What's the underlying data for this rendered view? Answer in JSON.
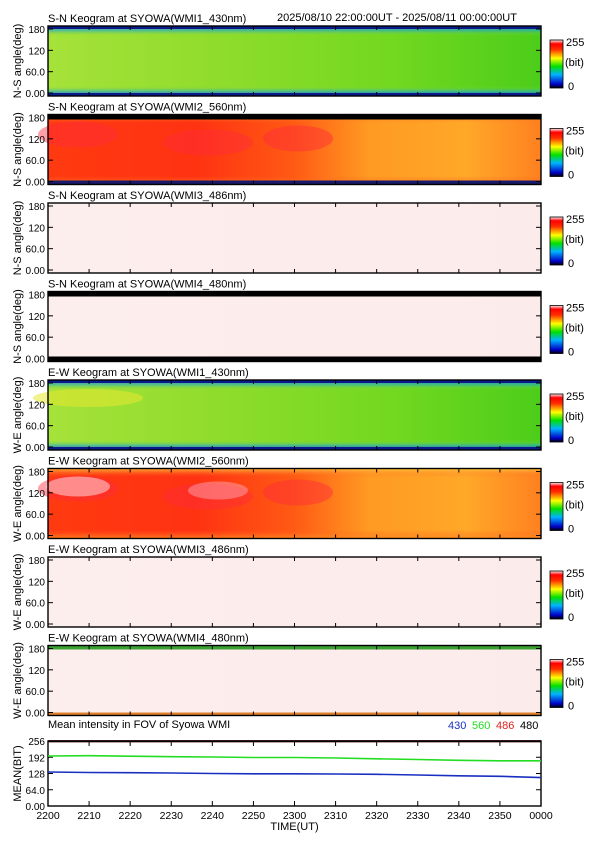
{
  "header": {
    "time_range": "2025/08/10 22:00:00UT - 2025/08/11 00:00:00UT"
  },
  "colorbar": {
    "max": "255",
    "unit": "(bit)",
    "min": "0"
  },
  "chart_data": [
    {
      "type": "heatmap",
      "title": "S-N Keogram at SYOWA(WMI1_430nm)",
      "ylabel": "N-S angle(deg)",
      "yticks": [
        "0.00",
        "60.0",
        "120",
        "180"
      ],
      "ylim": [
        0,
        180
      ],
      "color_level": 0.48,
      "tint": "green"
    },
    {
      "type": "heatmap",
      "title": "S-N Keogram at SYOWA(WMI2_560nm)",
      "ylabel": "N-S angle(deg)",
      "yticks": [
        "0.00",
        "60.0",
        "120",
        "180"
      ],
      "ylim": [
        0,
        180
      ],
      "color_level": 0.8,
      "tint": "red"
    },
    {
      "type": "heatmap",
      "title": "S-N Keogram at SYOWA(WMI3_486nm)",
      "ylabel": "N-S angle(deg)",
      "yticks": [
        "0.00",
        "60.0",
        "120",
        "180"
      ],
      "ylim": [
        0,
        180
      ],
      "color_level": 1.0,
      "tint": "saturated"
    },
    {
      "type": "heatmap",
      "title": "S-N Keogram at SYOWA(WMI4_480nm)",
      "ylabel": "N-S angle(deg)",
      "yticks": [
        "0.00",
        "60.0",
        "120",
        "180"
      ],
      "ylim": [
        0,
        180
      ],
      "color_level": 1.0,
      "tint": "saturated"
    },
    {
      "type": "heatmap",
      "title": "E-W Keogram at SYOWA(WMI1_430nm)",
      "ylabel": "W-E angle(deg)",
      "yticks": [
        "0.00",
        "60.0",
        "120",
        "180"
      ],
      "ylim": [
        0,
        180
      ],
      "color_level": 0.48,
      "tint": "green"
    },
    {
      "type": "heatmap",
      "title": "E-W Keogram at SYOWA(WMI2_560nm)",
      "ylabel": "W-E angle(deg)",
      "yticks": [
        "0.00",
        "60.0",
        "120",
        "180"
      ],
      "ylim": [
        0,
        180
      ],
      "color_level": 0.85,
      "tint": "red"
    },
    {
      "type": "heatmap",
      "title": "E-W Keogram at SYOWA(WMI3_486nm)",
      "ylabel": "W-E angle(deg)",
      "yticks": [
        "0.00",
        "60.0",
        "120",
        "180"
      ],
      "ylim": [
        0,
        180
      ],
      "color_level": 1.0,
      "tint": "saturated"
    },
    {
      "type": "heatmap",
      "title": "E-W Keogram at SYOWA(WMI4_480nm)",
      "ylabel": "W-E angle(deg)",
      "yticks": [
        "0.00",
        "60.0",
        "120",
        "180"
      ],
      "ylim": [
        0,
        180
      ],
      "color_level": 1.0,
      "tint": "saturated"
    },
    {
      "type": "line",
      "title": "Mean intensity in FOV of Syowa WMI",
      "ylabel": "MEAN(BIT)",
      "xlabel": "TIME(UT)",
      "yticks": [
        "0.00",
        "64.0",
        "128",
        "192",
        "256"
      ],
      "ylim": [
        0,
        256
      ],
      "x": [
        "2200",
        "2210",
        "2220",
        "2230",
        "2240",
        "2250",
        "2300",
        "2310",
        "2320",
        "2330",
        "2340",
        "2350",
        "0000"
      ],
      "series": [
        {
          "name": "430",
          "color": "#1a2fc0",
          "values": [
            134,
            132,
            131,
            130,
            128,
            127,
            127,
            126,
            125,
            122,
            119,
            117,
            112
          ]
        },
        {
          "name": "560",
          "color": "#22dd22",
          "values": [
            197,
            198,
            196,
            194,
            193,
            191,
            191,
            189,
            186,
            183,
            180,
            178,
            178
          ]
        },
        {
          "name": "486",
          "color": "#e02020",
          "values": [
            255,
            255,
            255,
            255,
            255,
            255,
            255,
            255,
            255,
            255,
            255,
            255,
            255
          ]
        },
        {
          "name": "480",
          "color": "#000000",
          "values": [
            255,
            255,
            255,
            255,
            255,
            255,
            255,
            255,
            255,
            255,
            255,
            255,
            255
          ]
        }
      ]
    }
  ],
  "xaxis": {
    "ticks": [
      "2200",
      "2210",
      "2220",
      "2230",
      "2240",
      "2250",
      "2300",
      "2310",
      "2320",
      "2330",
      "2340",
      "2350",
      "0000"
    ],
    "label": "TIME(UT)"
  }
}
